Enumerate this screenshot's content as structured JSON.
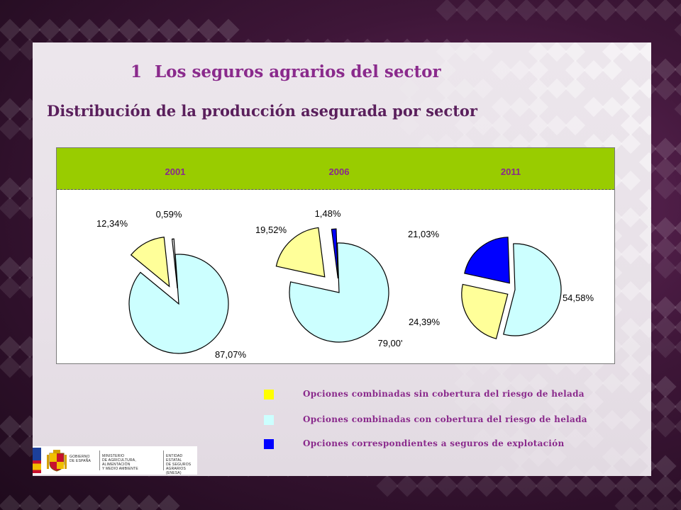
{
  "title_number": "1",
  "title": "Los seguros agrarios del sector",
  "subtitle": "Distribución de la producción asegurada por sector",
  "years": [
    "2001",
    "2006",
    "2011"
  ],
  "colors": {
    "sin_cobertura": "#ffff99",
    "con_cobertura": "#ccffff",
    "explotacion": "#0000ff",
    "header_green": "#99cc00",
    "accent_purple": "#8a2a8c"
  },
  "chart_data": [
    {
      "type": "pie",
      "title": "2001",
      "slices": [
        {
          "label": "Opciones combinadas con cobertura del riesgo de helada",
          "value": 87.07,
          "display": "87,07%",
          "color": "#ccffff"
        },
        {
          "label": "Opciones combinadas sin cobertura del riesgo de helada",
          "value": 12.34,
          "display": "12,34%",
          "color": "#ffff99"
        },
        {
          "label": "Opciones correspondientes a seguros de explotación",
          "value": 0.59,
          "display": "0,59%",
          "color": "#ffffff"
        }
      ]
    },
    {
      "type": "pie",
      "title": "2006",
      "slices": [
        {
          "label": "Opciones combinadas con cobertura del riesgo de helada",
          "value": 79.0,
          "display": "79,00'",
          "color": "#ccffff"
        },
        {
          "label": "Opciones combinadas sin cobertura del riesgo de helada",
          "value": 19.52,
          "display": "19,52%",
          "color": "#ffff99"
        },
        {
          "label": "Opciones correspondientes a seguros de explotación",
          "value": 1.48,
          "display": "1,48%",
          "color": "#0000ff"
        }
      ]
    },
    {
      "type": "pie",
      "title": "2011",
      "slices": [
        {
          "label": "Opciones combinadas con cobertura del riesgo de helada",
          "value": 54.58,
          "display": "54,58%",
          "color": "#ccffff"
        },
        {
          "label": "Opciones combinadas sin cobertura del riesgo de helada",
          "value": 24.39,
          "display": "24,39%",
          "color": "#ffff99"
        },
        {
          "label": "Opciones correspondientes a seguros de explotación",
          "value": 21.03,
          "display": "21,03%",
          "color": "#0000ff"
        }
      ]
    }
  ],
  "legend": [
    {
      "label": "Opciones combinadas sin cobertura del riesgo de helada",
      "color": "#ffff00"
    },
    {
      "label": "Opciones combinadas con cobertura del riesgo de helada",
      "color": "#ccffff"
    },
    {
      "label": "Opciones correspondientes a seguros de explotación",
      "color": "#0000ff"
    }
  ],
  "logos": {
    "gobierno": "GOBIERNO\nDE ESPAÑA",
    "ministerio": "MINISTERIO\nDE AGRICULTURA, ALIMENTACIÓN\nY MEDIO AMBIENTE",
    "enesa": "ENTIDAD ESTATAL\nDE SEGUROS\nAGRARIOS (ENESA)"
  }
}
